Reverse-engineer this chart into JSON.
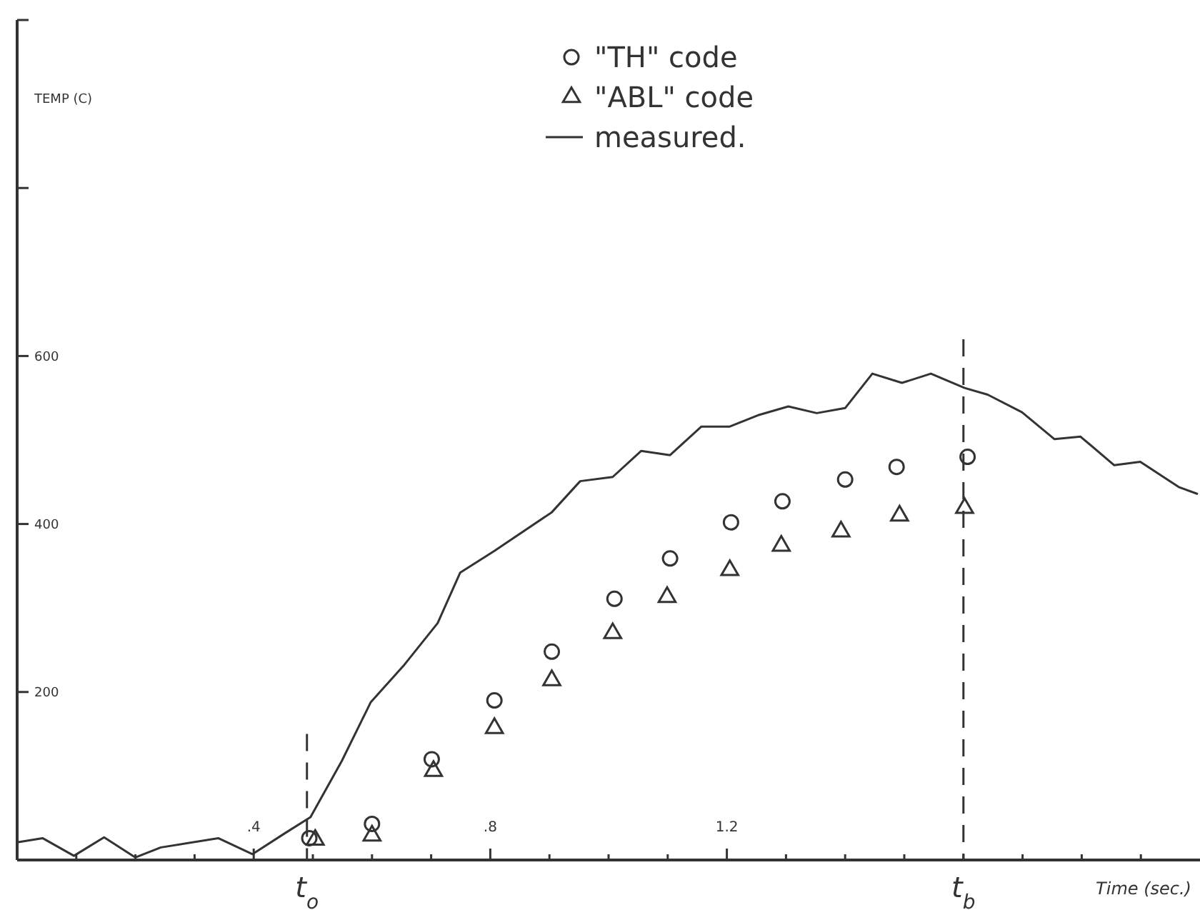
{
  "chart_data": {
    "type": "line",
    "xlabel": "Time (sec.)",
    "ylabel": "TEMP (C)",
    "xlim": [
      0,
      2
    ],
    "xticks": [
      {
        "value": 0.1,
        "label": null
      },
      {
        "value": 0.2,
        "label": null
      },
      {
        "value": 0.3,
        "label": null
      },
      {
        "value": 0.4,
        "label": ".4"
      },
      {
        "value": 0.5,
        "label": null
      },
      {
        "value": 0.6,
        "label": null
      },
      {
        "value": 0.7,
        "label": null
      },
      {
        "value": 0.8,
        "label": ".8"
      },
      {
        "value": 0.9,
        "label": null
      },
      {
        "value": 1.0,
        "label": null
      },
      {
        "value": 1.1,
        "label": null
      },
      {
        "value": 1.2,
        "label": "1.2"
      },
      {
        "value": 1.3,
        "label": null
      },
      {
        "value": 1.4,
        "label": null
      },
      {
        "value": 1.5,
        "label": null
      },
      {
        "value": 1.6,
        "label": null
      },
      {
        "value": 1.7,
        "label": null
      },
      {
        "value": 1.8,
        "label": null
      },
      {
        "value": 1.9,
        "label": null
      }
    ],
    "ylim": [
      0,
      1000
    ],
    "yticks": [
      200,
      400,
      600,
      {
        "value": 800,
        "label": null
      },
      {
        "value": 1000,
        "label": null
      }
    ],
    "grid": false,
    "legend": "top",
    "ref_lines": [
      {
        "axis": "x",
        "value": 0.49,
        "label": "t$_{o}$",
        "line_style": "dashed",
        "color": "#333333"
      },
      {
        "axis": "x",
        "value": 1.6,
        "label": "t$_{b}$",
        "line_style": "dashed",
        "color": "#333333"
      }
    ],
    "series": [
      {
        "name": "\"TH\" code",
        "type": "scatter",
        "marker": "circle",
        "color": "#333333",
        "x": [
          0.494,
          0.6,
          0.701,
          0.807,
          0.904,
          1.01,
          1.104,
          1.207,
          1.294,
          1.4,
          1.487,
          1.607
        ],
        "values": [
          26,
          43,
          120,
          190,
          248,
          311,
          359,
          402,
          427,
          453,
          468,
          480
        ]
      },
      {
        "name": "\"ABL\" code",
        "type": "scatter",
        "marker": "triangle",
        "color": "#333333",
        "x": [
          0.504,
          0.6,
          0.704,
          0.807,
          0.904,
          1.007,
          1.099,
          1.205,
          1.292,
          1.393,
          1.492,
          1.602
        ],
        "values": [
          24,
          29,
          106,
          157,
          214,
          270,
          313,
          345,
          374,
          391,
          410,
          419
        ]
      },
      {
        "name": "measured.",
        "marker": "none",
        "line_style": "solid",
        "color": "#333333",
        "x": [
          0,
          0.043,
          0.096,
          0.147,
          0.2,
          0.243,
          0.34,
          0.398,
          0.453,
          0.496,
          0.549,
          0.598,
          0.653,
          0.711,
          0.749,
          0.807,
          0.904,
          0.952,
          1.007,
          1.055,
          1.104,
          1.157,
          1.205,
          1.255,
          1.304,
          1.352,
          1.4,
          1.446,
          1.496,
          1.545,
          1.602,
          1.641,
          1.699,
          1.754,
          1.798,
          1.855,
          1.899,
          1.964,
          1.995
        ],
        "values": [
          21,
          26,
          5,
          27,
          3,
          15,
          26,
          7,
          32,
          51,
          118,
          188,
          231,
          282,
          342,
          368,
          414,
          451,
          456,
          487,
          482,
          516,
          516,
          530,
          540,
          532,
          538,
          579,
          568,
          579,
          562,
          554,
          533,
          501,
          504,
          470,
          474,
          444,
          436
        ]
      }
    ]
  }
}
